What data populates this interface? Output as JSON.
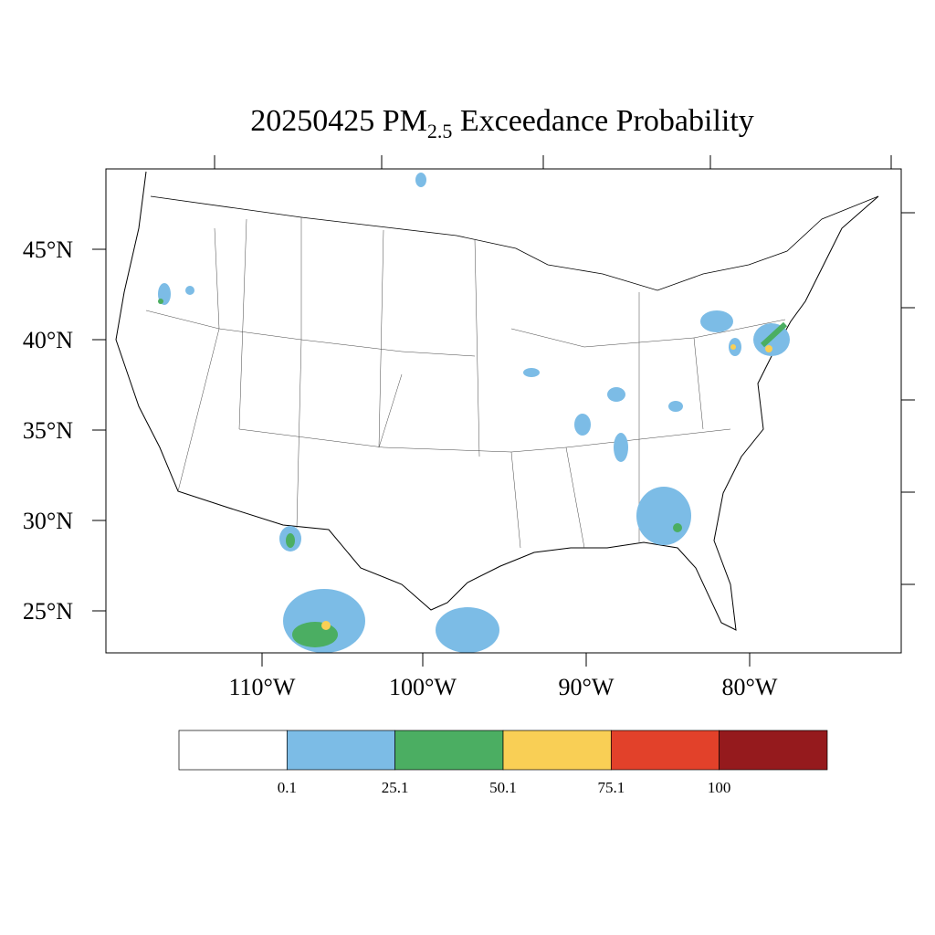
{
  "title": {
    "main": "20250425 PM",
    "subscript": "2.5",
    "rest": " Exceedance Probability"
  },
  "lat_labels": [
    "45°N",
    "40°N",
    "35°N",
    "30°N",
    "25°N"
  ],
  "lon_labels": [
    "110°W",
    "100°W",
    "90°W",
    "80°W"
  ],
  "colorbar": {
    "colors": [
      "#ffffff",
      "#7cbce6",
      "#4bae62",
      "#f9cf55",
      "#e2412a",
      "#951a1d"
    ],
    "labels": [
      "0.1",
      "25.1",
      "50.1",
      "75.1",
      "100"
    ]
  }
}
